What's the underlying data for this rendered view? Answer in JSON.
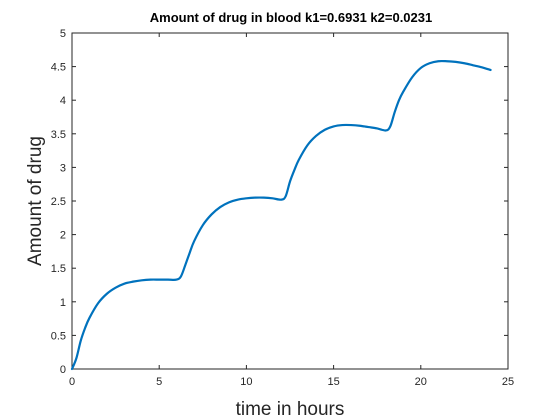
{
  "chart_data": {
    "type": "line",
    "title": "Amount of drug in blood k1=0.6931 k2=0.0231",
    "xlabel": "time in hours",
    "ylabel": "Amount of drug",
    "xlim": [
      0,
      25
    ],
    "ylim": [
      0,
      5
    ],
    "x_ticks": [
      0,
      5,
      10,
      15,
      20,
      25
    ],
    "y_ticks": [
      0,
      0.5,
      1,
      1.5,
      2,
      2.5,
      3,
      3.5,
      4,
      4.5,
      5
    ],
    "x_tick_labels": [
      "0",
      "5",
      "10",
      "15",
      "20",
      "25"
    ],
    "y_tick_labels": [
      "0",
      "0.5",
      "1",
      "1.5",
      "2",
      "2.5",
      "3",
      "3.5",
      "4",
      "4.5",
      "5"
    ],
    "grid": false,
    "line_color": "#0072BD",
    "series": [
      {
        "x": [
          0,
          0.25,
          0.5,
          0.75,
          1,
          1.5,
          2,
          2.5,
          3,
          3.5,
          4,
          4.5,
          5,
          5.5,
          6,
          6.25,
          6.5,
          6.75,
          7,
          7.5,
          8,
          8.5,
          9,
          9.5,
          10,
          10.5,
          11,
          11.5,
          12,
          12.25,
          12.5,
          12.75,
          13,
          13.5,
          14,
          14.5,
          15,
          15.5,
          16,
          16.5,
          17,
          17.5,
          18,
          18.25,
          18.5,
          18.75,
          19,
          19.5,
          20,
          20.5,
          21,
          21.5,
          22,
          22.5,
          23,
          23.5,
          24
        ],
        "y": [
          0,
          0.16,
          0.42,
          0.61,
          0.76,
          0.98,
          1.12,
          1.21,
          1.27,
          1.3,
          1.32,
          1.33,
          1.33,
          1.33,
          1.33,
          1.38,
          1.55,
          1.73,
          1.9,
          2.14,
          2.3,
          2.41,
          2.48,
          2.52,
          2.54,
          2.55,
          2.55,
          2.54,
          2.52,
          2.57,
          2.79,
          2.96,
          3.11,
          3.33,
          3.47,
          3.56,
          3.61,
          3.63,
          3.63,
          3.62,
          3.6,
          3.58,
          3.55,
          3.61,
          3.82,
          4.0,
          4.13,
          4.34,
          4.48,
          4.55,
          4.58,
          4.58,
          4.57,
          4.55,
          4.52,
          4.49,
          4.45
        ]
      }
    ]
  }
}
